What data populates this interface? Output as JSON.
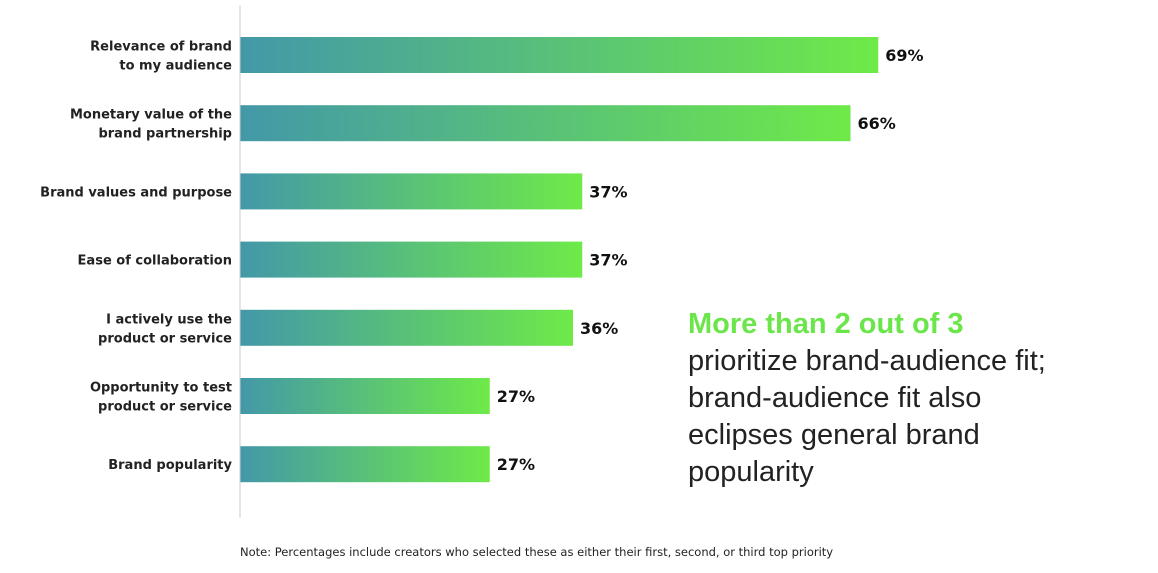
{
  "chart_data": {
    "type": "bar",
    "orientation": "horizontal",
    "categories": [
      [
        "Relevance of brand",
        "to my audience"
      ],
      [
        "Monetary value of the",
        "brand partnership"
      ],
      [
        "Brand values and purpose"
      ],
      [
        "Ease of collaboration"
      ],
      [
        "I actively use the",
        "product or service"
      ],
      [
        "Opportunity to test",
        "product or service"
      ],
      [
        "Brand popularity"
      ]
    ],
    "values": [
      69,
      66,
      37,
      37,
      36,
      27,
      27
    ],
    "value_labels": [
      "69%",
      "66%",
      "37%",
      "37%",
      "36%",
      "27%",
      "27%"
    ],
    "unit": "%",
    "xlim": [
      0,
      75
    ],
    "grid": false,
    "colors": {
      "gradient_start": "#4398a8",
      "gradient_end": "#6eea48",
      "axis": "#cccccc"
    }
  },
  "callout": {
    "highlight": "More than 2 out of 3",
    "lines": [
      "prioritize brand-audience fit;",
      "brand-audience fit also",
      "eclipses general brand",
      "popularity"
    ],
    "highlight_color": "#6be64a"
  },
  "note": "Note: Percentages include creators who selected these as either their first, second, or third top priority"
}
